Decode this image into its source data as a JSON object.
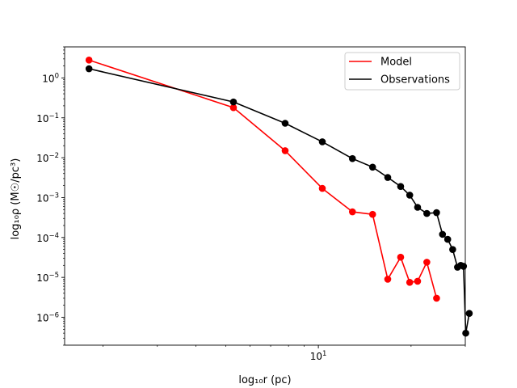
{
  "chart_data": {
    "type": "line",
    "xscale": "log",
    "yscale": "log",
    "xlim": [
      1.5,
      30
    ],
    "ylim": [
      2e-07,
      6
    ],
    "xlabel": "log₁₀r (pc)",
    "ylabel": "log₁₀ρ (M☉/pc³)",
    "x_tick_labels": [
      {
        "value": 10,
        "base": "10",
        "exp": "1"
      }
    ],
    "y_tick_labels": [
      {
        "value": 1e-06,
        "base": "10",
        "exp": "−6"
      },
      {
        "value": 1e-05,
        "base": "10",
        "exp": "−5"
      },
      {
        "value": 0.0001,
        "base": "10",
        "exp": "−4"
      },
      {
        "value": 0.001,
        "base": "10",
        "exp": "−3"
      },
      {
        "value": 0.01,
        "base": "10",
        "exp": "−2"
      },
      {
        "value": 0.1,
        "base": "10",
        "exp": "−1"
      },
      {
        "value": 1,
        "base": "10",
        "exp": "0"
      }
    ],
    "legend_position": "upper right",
    "series": [
      {
        "name": "Model",
        "color": "#ff0000",
        "x": [
          1.8,
          5.3,
          7.8,
          10.3,
          12.9,
          15.0,
          16.8,
          18.5,
          19.8,
          21.0,
          22.5,
          24.2
        ],
        "y": [
          2.8,
          0.18,
          0.015,
          0.0017,
          0.00044,
          0.00038,
          9e-06,
          3.2e-05,
          7.5e-06,
          8e-06,
          2.4e-05,
          3e-06
        ]
      },
      {
        "name": "Observations",
        "color": "#000000",
        "x": [
          1.8,
          5.3,
          7.8,
          10.3,
          12.9,
          15.0,
          16.8,
          18.5,
          19.8,
          21.0,
          22.5,
          24.2,
          25.3,
          26.3,
          27.3,
          28.3,
          29.0,
          29.6,
          30.1,
          30.9
        ],
        "y": [
          1.7,
          0.25,
          0.073,
          0.025,
          0.0095,
          0.0058,
          0.0032,
          0.0019,
          0.00115,
          0.00057,
          0.0004,
          0.00042,
          0.00012,
          9e-05,
          5e-05,
          1.8e-05,
          2e-05,
          1.9e-05,
          4e-07,
          1.25e-06
        ]
      }
    ]
  }
}
